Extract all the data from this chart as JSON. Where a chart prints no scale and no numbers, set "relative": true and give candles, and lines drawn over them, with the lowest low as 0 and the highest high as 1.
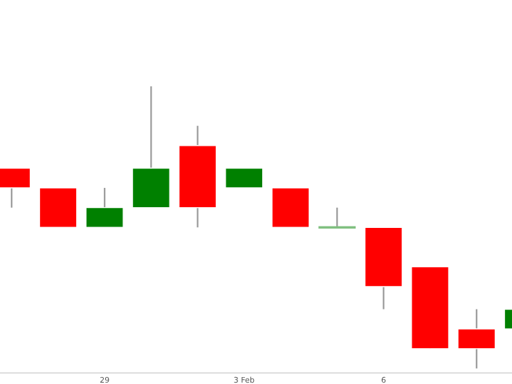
{
  "chart_data": {
    "type": "candlestick",
    "relative": true,
    "tick_labels": "x",
    "categories": [
      null,
      null,
      "29",
      null,
      null,
      "3 Feb",
      null,
      null,
      "6",
      null,
      null,
      null
    ],
    "ohlc": [
      [
        0.71,
        0.71,
        0.57,
        0.64
      ],
      [
        0.64,
        0.64,
        0.5,
        0.5
      ],
      [
        0.5,
        0.64,
        0.5,
        0.57
      ],
      [
        0.57,
        1.0,
        0.57,
        0.71
      ],
      [
        0.79,
        0.86,
        0.5,
        0.57
      ],
      [
        0.64,
        0.71,
        0.64,
        0.71
      ],
      [
        0.64,
        0.64,
        0.5,
        0.5
      ],
      [
        0.5,
        0.57,
        0.5,
        0.5
      ],
      [
        0.5,
        0.5,
        0.21,
        0.29
      ],
      [
        0.36,
        0.36,
        0.07,
        0.07
      ],
      [
        0.14,
        0.21,
        0,
        0.07
      ],
      [
        0.14,
        0.21,
        0.14,
        0.21
      ]
    ],
    "colors": [
      "#ff0000",
      "#ff0000",
      "#008000",
      "#008000",
      "#ff0000",
      "#008000",
      "#ff0000",
      "#80c080",
      "#ff0000",
      "#ff0000",
      "#ff0000",
      "#008000"
    ]
  }
}
